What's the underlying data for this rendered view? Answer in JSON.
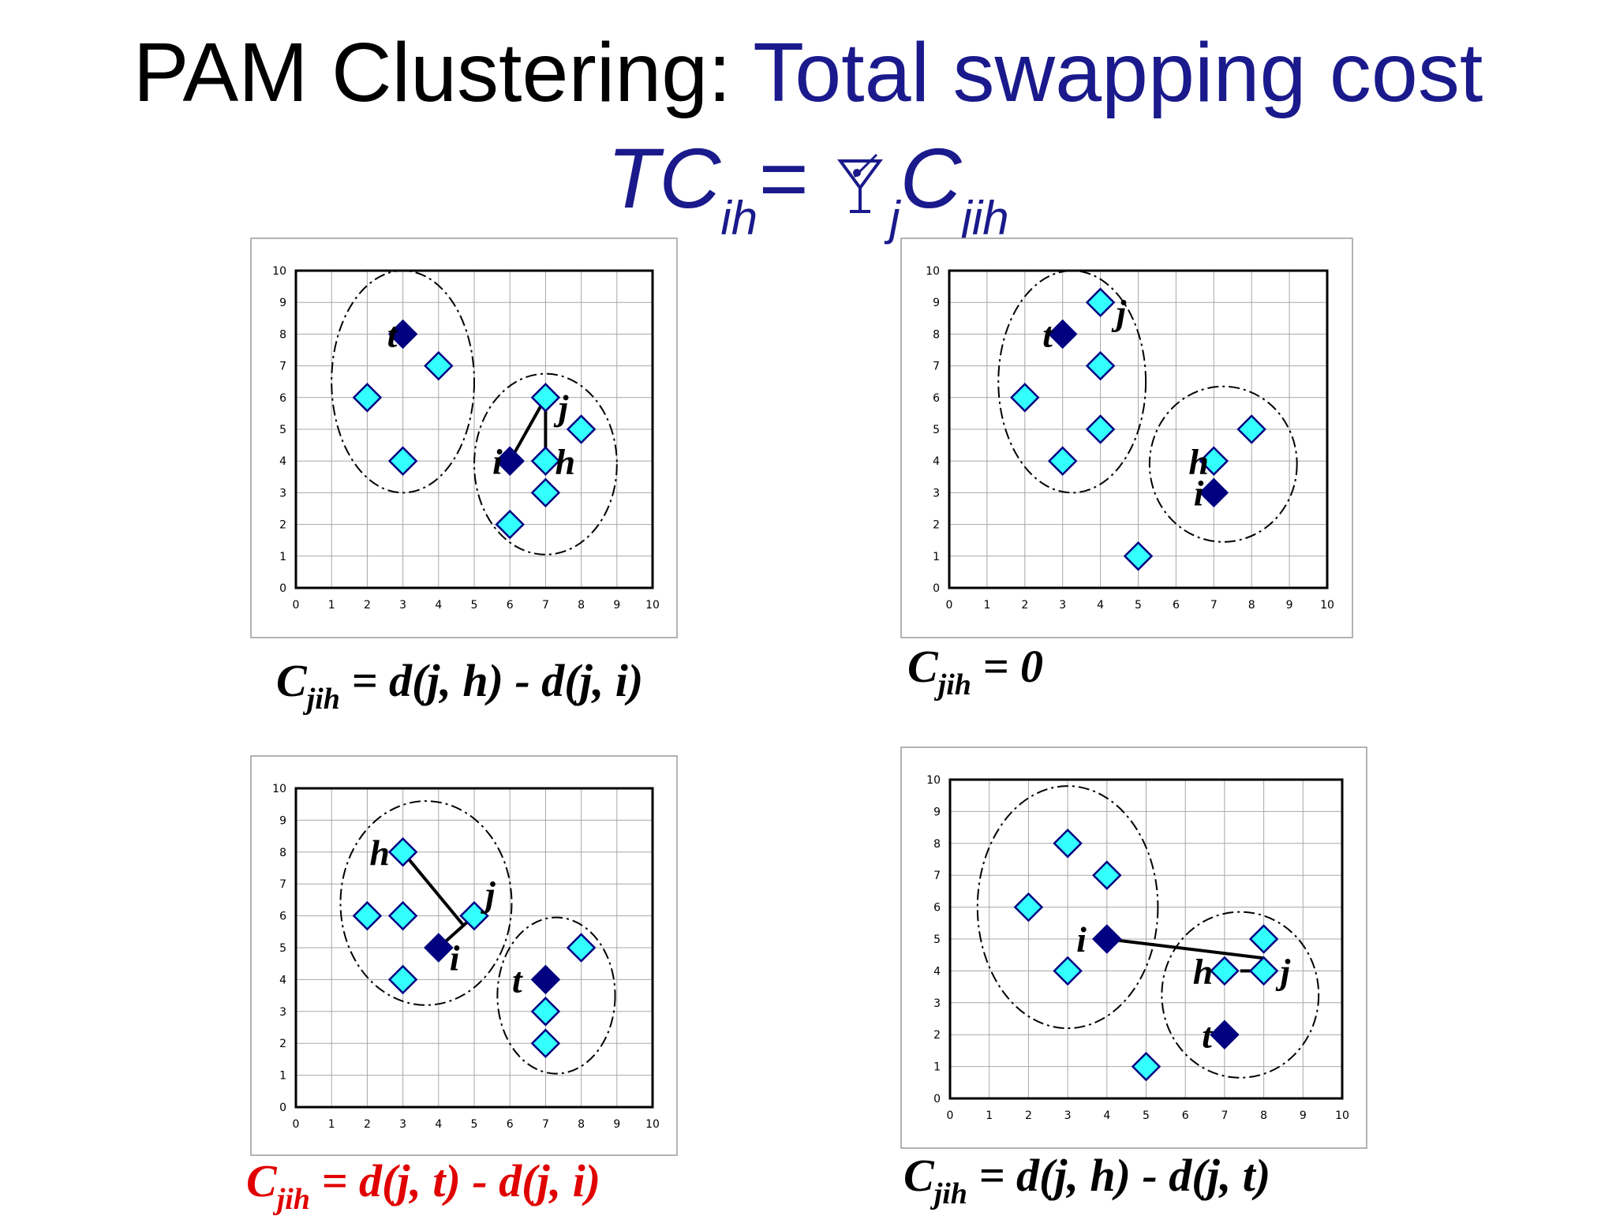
{
  "title": {
    "prefix": "PAM Clustering:",
    "highlight": "Total swapping cost",
    "formula": {
      "lhs": "TC",
      "lhs_sub": "ih",
      "equals": "=",
      "sum_sub": "j",
      "rhs": "C",
      "rhs_sub": "jih"
    }
  },
  "colors": {
    "title_highlight": "#1a1a8c",
    "medoid": "#000080",
    "point": "#33ffff",
    "point_outline": "#000080",
    "caption_red": "#e00000"
  },
  "chart_data": [
    {
      "type": "scatter",
      "xlim": [
        0,
        10
      ],
      "ylim": [
        0,
        10
      ],
      "xticks": [
        "0",
        "1",
        "2",
        "3",
        "4",
        "5",
        "6",
        "7",
        "8",
        "9",
        "10"
      ],
      "yticks": [
        "0",
        "1",
        "2",
        "3",
        "4",
        "5",
        "6",
        "7",
        "8",
        "9",
        "10"
      ],
      "grid": true,
      "medoids": [
        {
          "x": 3,
          "y": 8
        },
        {
          "x": 6,
          "y": 4
        }
      ],
      "points": [
        {
          "x": 2,
          "y": 6
        },
        {
          "x": 3,
          "y": 4
        },
        {
          "x": 4,
          "y": 7
        },
        {
          "x": 7,
          "y": 6
        },
        {
          "x": 8,
          "y": 5
        },
        {
          "x": 7,
          "y": 4
        },
        {
          "x": 7,
          "y": 3
        },
        {
          "x": 6,
          "y": 2
        }
      ],
      "labels": [
        {
          "text": "t",
          "x": 2.7,
          "y": 7.6
        },
        {
          "text": "i",
          "x": 5.65,
          "y": 3.6
        },
        {
          "text": "j",
          "x": 7.5,
          "y": 5.3
        },
        {
          "text": "h",
          "x": 7.55,
          "y": 3.6
        }
      ],
      "lines": [
        [
          {
            "x": 6,
            "y": 4
          },
          {
            "x": 7,
            "y": 6
          }
        ],
        [
          {
            "x": 7,
            "y": 6
          },
          {
            "x": 7,
            "y": 4
          }
        ]
      ],
      "clusters": [
        {
          "cx": 3,
          "cy": 6.5,
          "rx": 2,
          "ry": 3.5
        },
        {
          "cx": 7,
          "cy": 3.9,
          "rx": 2,
          "ry": 2.85
        }
      ],
      "caption": {
        "pre": "C",
        "sub": "jih",
        "post": " = d(j, h) - d(j, i)",
        "color": "#000000"
      }
    },
    {
      "type": "scatter",
      "xlim": [
        0,
        10
      ],
      "ylim": [
        0,
        10
      ],
      "xticks": [
        "0",
        "1",
        "2",
        "3",
        "4",
        "5",
        "6",
        "7",
        "8",
        "9",
        "10"
      ],
      "yticks": [
        "0",
        "1",
        "2",
        "3",
        "4",
        "5",
        "6",
        "7",
        "8",
        "9",
        "10"
      ],
      "grid": true,
      "medoids": [
        {
          "x": 3,
          "y": 8
        },
        {
          "x": 7,
          "y": 3
        }
      ],
      "points": [
        {
          "x": 4,
          "y": 9
        },
        {
          "x": 4,
          "y": 7
        },
        {
          "x": 2,
          "y": 6
        },
        {
          "x": 4,
          "y": 5
        },
        {
          "x": 3,
          "y": 4
        },
        {
          "x": 7,
          "y": 4
        },
        {
          "x": 8,
          "y": 5
        },
        {
          "x": 5,
          "y": 1
        }
      ],
      "labels": [
        {
          "text": "t",
          "x": 2.6,
          "y": 7.6
        },
        {
          "text": "j",
          "x": 4.55,
          "y": 8.3
        },
        {
          "text": "h",
          "x": 6.6,
          "y": 3.6
        },
        {
          "text": "i",
          "x": 6.6,
          "y": 2.6
        }
      ],
      "lines": [],
      "clusters": [
        {
          "cx": 3.25,
          "cy": 6.5,
          "rx": 1.95,
          "ry": 3.5
        },
        {
          "cx": 7.25,
          "cy": 3.9,
          "rx": 1.95,
          "ry": 2.45
        }
      ],
      "caption": {
        "pre": "C",
        "sub": "jih",
        "post": " = 0",
        "color": "#000000"
      }
    },
    {
      "type": "scatter",
      "xlim": [
        0,
        10
      ],
      "ylim": [
        0,
        10
      ],
      "xticks": [
        "0",
        "1",
        "2",
        "3",
        "4",
        "5",
        "6",
        "7",
        "8",
        "9",
        "10"
      ],
      "yticks": [
        "0",
        "1",
        "2",
        "3",
        "4",
        "5",
        "6",
        "7",
        "8",
        "9",
        "10"
      ],
      "grid": true,
      "medoids": [
        {
          "x": 4,
          "y": 5
        },
        {
          "x": 7,
          "y": 4
        }
      ],
      "points": [
        {
          "x": 3,
          "y": 8
        },
        {
          "x": 2,
          "y": 6
        },
        {
          "x": 3,
          "y": 6
        },
        {
          "x": 5,
          "y": 6
        },
        {
          "x": 3,
          "y": 4
        },
        {
          "x": 8,
          "y": 5
        },
        {
          "x": 7,
          "y": 3
        },
        {
          "x": 7,
          "y": 2
        }
      ],
      "labels": [
        {
          "text": "h",
          "x": 2.35,
          "y": 7.6
        },
        {
          "text": "j",
          "x": 5.45,
          "y": 6.3
        },
        {
          "text": "i",
          "x": 4.45,
          "y": 4.3
        },
        {
          "text": "t",
          "x": 6.2,
          "y": 3.6
        }
      ],
      "lines": [
        [
          {
            "x": 3,
            "y": 8
          },
          {
            "x": 4.7,
            "y": 5.7
          }
        ],
        [
          {
            "x": 4,
            "y": 5
          },
          {
            "x": 5,
            "y": 6
          }
        ]
      ],
      "clusters": [
        {
          "cx": 3.65,
          "cy": 6.4,
          "rx": 2.4,
          "ry": 3.2
        },
        {
          "cx": 7.3,
          "cy": 3.5,
          "rx": 1.65,
          "ry": 2.45
        }
      ],
      "caption": {
        "pre": "C",
        "sub": "jih",
        "post": " = d(j, t) - d(j, i)",
        "color": "#e00000"
      }
    },
    {
      "type": "scatter",
      "xlim": [
        0,
        10
      ],
      "ylim": [
        0,
        10
      ],
      "xticks": [
        "0",
        "1",
        "2",
        "3",
        "4",
        "5",
        "6",
        "7",
        "8",
        "9",
        "10"
      ],
      "yticks": [
        "0",
        "1",
        "2",
        "3",
        "4",
        "5",
        "6",
        "7",
        "8",
        "9",
        "10"
      ],
      "grid": true,
      "medoids": [
        {
          "x": 4,
          "y": 5
        },
        {
          "x": 7,
          "y": 2
        }
      ],
      "points": [
        {
          "x": 3,
          "y": 8
        },
        {
          "x": 4,
          "y": 7
        },
        {
          "x": 2,
          "y": 6
        },
        {
          "x": 3,
          "y": 4
        },
        {
          "x": 7,
          "y": 4
        },
        {
          "x": 8,
          "y": 5
        },
        {
          "x": 8,
          "y": 4
        },
        {
          "x": 5,
          "y": 1
        }
      ],
      "labels": [
        {
          "text": "i",
          "x": 3.35,
          "y": 4.6
        },
        {
          "text": "h",
          "x": 6.45,
          "y": 3.6
        },
        {
          "text": "j",
          "x": 8.55,
          "y": 3.6
        },
        {
          "text": "t",
          "x": 6.55,
          "y": 1.6
        }
      ],
      "lines": [
        [
          {
            "x": 4,
            "y": 5
          },
          {
            "x": 8,
            "y": 4.4
          }
        ],
        [
          {
            "x": 7.4,
            "y": 4
          },
          {
            "x": 7.7,
            "y": 4
          }
        ]
      ],
      "clusters": [
        {
          "cx": 3,
          "cy": 6,
          "rx": 2.3,
          "ry": 3.8
        },
        {
          "cx": 7.4,
          "cy": 3.25,
          "rx": 2,
          "ry": 2.6
        }
      ],
      "caption": {
        "pre": "C",
        "sub": "jih",
        "post": " = d(j, h) - d(j, t)",
        "color": "#000000"
      }
    }
  ]
}
